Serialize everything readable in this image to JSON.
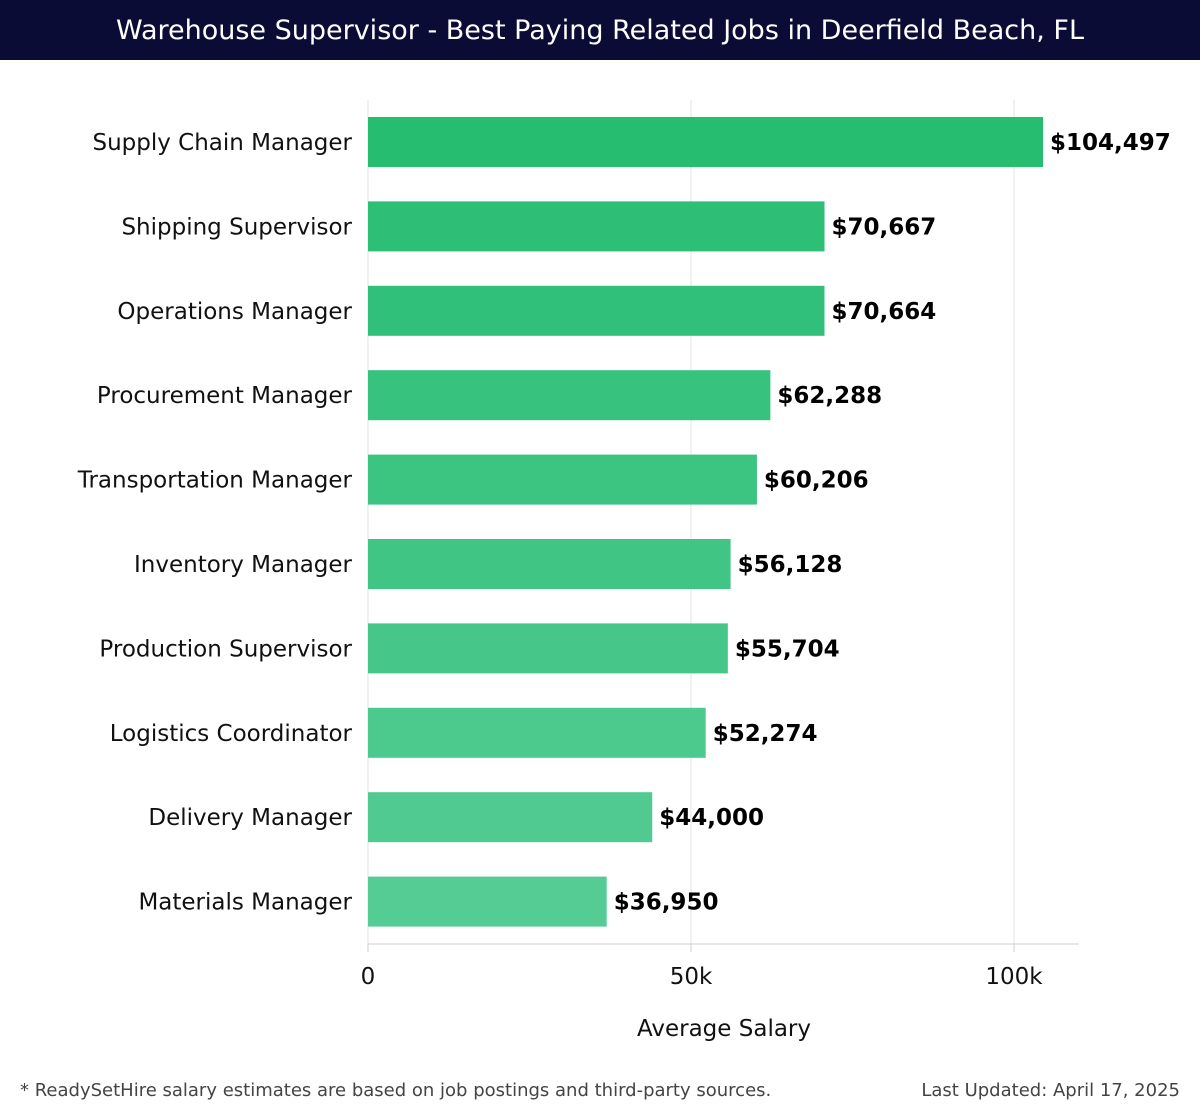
{
  "header": {
    "title": "Warehouse Supervisor - Best Paying Related Jobs in Deerfield Beach, FL"
  },
  "chart_data": {
    "type": "bar",
    "orientation": "horizontal",
    "title": "Warehouse Supervisor - Best Paying Related Jobs in Deerfield Beach, FL",
    "categories": [
      "Supply Chain Manager",
      "Shipping Supervisor",
      "Operations Manager",
      "Procurement Manager",
      "Transportation Manager",
      "Inventory Manager",
      "Production Supervisor",
      "Logistics Coordinator",
      "Delivery Manager",
      "Materials Manager"
    ],
    "values": [
      104497,
      70667,
      70664,
      62288,
      60206,
      56128,
      55704,
      52274,
      44000,
      36950
    ],
    "value_labels": [
      "$104,497",
      "$70,667",
      "$70,664",
      "$62,288",
      "$60,206",
      "$56,128",
      "$55,704",
      "$52,274",
      "$44,000",
      "$36,950"
    ],
    "xlabel": "Average Salary",
    "ylabel": "",
    "xlim": [
      0,
      110000
    ],
    "xticks": [
      0,
      50000,
      100000
    ],
    "xtick_labels": [
      "0",
      "50k",
      "100k"
    ],
    "grid": true,
    "colors": {
      "top": "#27bd71",
      "base": "#3cc484",
      "light": "#56cc95",
      "grid": "#e3e3e3"
    }
  },
  "footer": {
    "note": "* ReadySetHire salary estimates are based on job postings and third-party sources.",
    "updated": "Last Updated: April 17, 2025"
  }
}
